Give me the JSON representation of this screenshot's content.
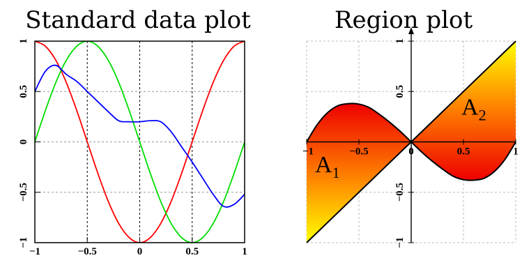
{
  "chart_data": [
    {
      "type": "line",
      "title": "Standard data plot",
      "xlim": [
        -1,
        1
      ],
      "ylim": [
        -1,
        1
      ],
      "xticks": [
        -1,
        -0.5,
        0,
        0.5,
        1
      ],
      "yticks": [
        -1,
        -0.5,
        0,
        0.5,
        1
      ],
      "xtick_labels": [
        "−1",
        "−0.5",
        "0",
        "0.5",
        "1"
      ],
      "ytick_labels": [
        "−1",
        "−0.5",
        "0",
        "0.5",
        "1"
      ],
      "grid": "dashed at ticks (vertical black, horizontal gray)",
      "x": [
        -1,
        -0.9,
        -0.8,
        -0.7,
        -0.6,
        -0.5,
        -0.4,
        -0.3,
        -0.2,
        -0.1,
        0,
        0.1,
        0.2,
        0.3,
        0.4,
        0.5,
        0.6,
        0.7,
        0.8,
        0.9,
        1
      ],
      "series": [
        {
          "color": "#ff0000",
          "values": [
            1,
            0.95,
            0.81,
            0.59,
            0.31,
            0,
            -0.31,
            -0.59,
            -0.81,
            -0.95,
            -1,
            -0.95,
            -0.81,
            -0.59,
            -0.31,
            0,
            0.31,
            0.59,
            0.81,
            0.95,
            1
          ]
        },
        {
          "color": "#00dd00",
          "values": [
            0,
            0.31,
            0.59,
            0.81,
            0.95,
            1,
            0.95,
            0.81,
            0.59,
            0.31,
            0,
            -0.31,
            -0.59,
            -0.81,
            -0.95,
            -1,
            -0.95,
            -0.81,
            -0.59,
            -0.31,
            0
          ]
        },
        {
          "color": "#0000ff",
          "values": [
            0.5,
            0.7,
            0.76,
            0.67,
            0.6,
            0.5,
            0.4,
            0.3,
            0.21,
            0.2,
            0.2,
            0.21,
            0.2,
            0.1,
            -0.05,
            -0.2,
            -0.36,
            -0.52,
            -0.64,
            -0.62,
            -0.52
          ]
        }
      ]
    },
    {
      "type": "area",
      "title": "Region plot",
      "xlim": [
        -1,
        1
      ],
      "ylim": [
        -1,
        1
      ],
      "xticks": [
        -1,
        -0.5,
        0,
        0.5,
        1
      ],
      "yticks": [
        -1,
        -0.5,
        0,
        0.5,
        1
      ],
      "xtick_labels": [
        "−1",
        "−0.5",
        "0",
        "0.5",
        "1"
      ],
      "ytick_labels": [
        "−1",
        "−0.5",
        "0",
        "0.5",
        "1"
      ],
      "axes": "through origin",
      "grid": "dashed light gray",
      "fill_gradient": [
        "#ff0000",
        "#ffff00"
      ],
      "boundaries": {
        "line": "y = x",
        "curve_x": [
          -1,
          -0.9,
          -0.8,
          -0.7,
          -0.6,
          -0.5,
          -0.4,
          -0.3,
          -0.2,
          -0.1,
          0,
          0.1,
          0.2,
          0.3,
          0.4,
          0.5,
          0.6,
          0.7,
          0.8,
          0.9,
          1
        ],
        "curve_y": [
          0,
          0.17,
          0.29,
          0.36,
          0.38,
          0.375,
          0.34,
          0.27,
          0.19,
          0.1,
          0,
          -0.1,
          -0.19,
          -0.27,
          -0.34,
          -0.375,
          -0.38,
          -0.36,
          -0.29,
          -0.17,
          0
        ]
      },
      "regions": [
        {
          "label": "A",
          "subscript": "1",
          "side": "left"
        },
        {
          "label": "A",
          "subscript": "2",
          "side": "right"
        }
      ]
    }
  ]
}
